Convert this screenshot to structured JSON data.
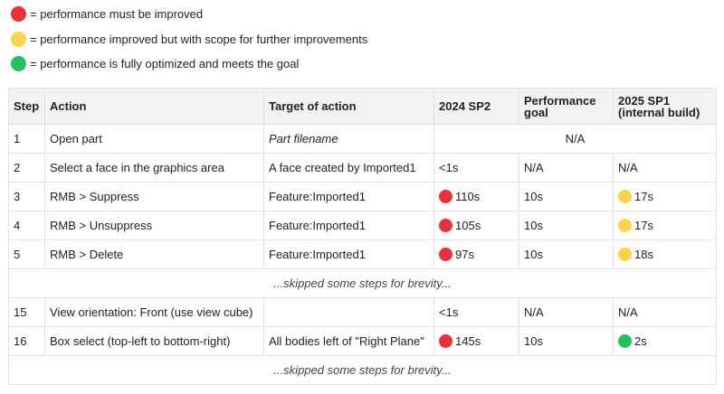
{
  "colors": {
    "red": "#e8313a",
    "yellow": "#fcd34b",
    "green": "#22c35e"
  },
  "legend": [
    {
      "color": "red",
      "text": "= performance must be improved"
    },
    {
      "color": "yellow",
      "text": "= performance improved but with scope for further improvements"
    },
    {
      "color": "green",
      "text": "= performance is fully optimized and meets the goal"
    }
  ],
  "table": {
    "headers": [
      "Step",
      "Action",
      "Target of action",
      "2024 SP2",
      "Performance goal",
      "2025 SP1 (internal build)"
    ],
    "rows": [
      {
        "step": "1",
        "action": "Open part",
        "target": "Part filename",
        "merged": "N/A"
      },
      {
        "step": "2",
        "action": "Select a face in the graphics area",
        "target": "A face created by Imported1",
        "sp2": "<1s",
        "goal": "N/A",
        "sp1": "N/A"
      },
      {
        "step": "3",
        "action": "RMB > Suppress",
        "target": "Feature:Imported1",
        "sp2": "110s",
        "sp2_status": "red",
        "goal": "10s",
        "sp1": "17s",
        "sp1_status": "yellow"
      },
      {
        "step": "4",
        "action": "RMB > Unsuppress",
        "target": "Feature:Imported1",
        "sp2": "105s",
        "sp2_status": "red",
        "goal": "10s",
        "sp1": "17s",
        "sp1_status": "yellow"
      },
      {
        "step": "5",
        "action": "RMB > Delete",
        "target": "Feature:Imported1",
        "sp2": "97s",
        "sp2_status": "red",
        "goal": "10s",
        "sp1": "18s",
        "sp1_status": "yellow"
      },
      {
        "skip": "...skipped some steps for brevity..."
      },
      {
        "step": "15",
        "action": "View orientation: Front (use view cube)",
        "target": "",
        "sp2": "<1s",
        "goal": "N/A",
        "sp1": "N/A"
      },
      {
        "step": "16",
        "action": "Box select (top-left to bottom-right)",
        "target": "All bodies left of \"Right Plane\"",
        "sp2": "145s",
        "sp2_status": "red",
        "goal": "10s",
        "sp1": "2s",
        "sp1_status": "green"
      },
      {
        "skip": "...skipped some steps for brevity..."
      }
    ]
  }
}
